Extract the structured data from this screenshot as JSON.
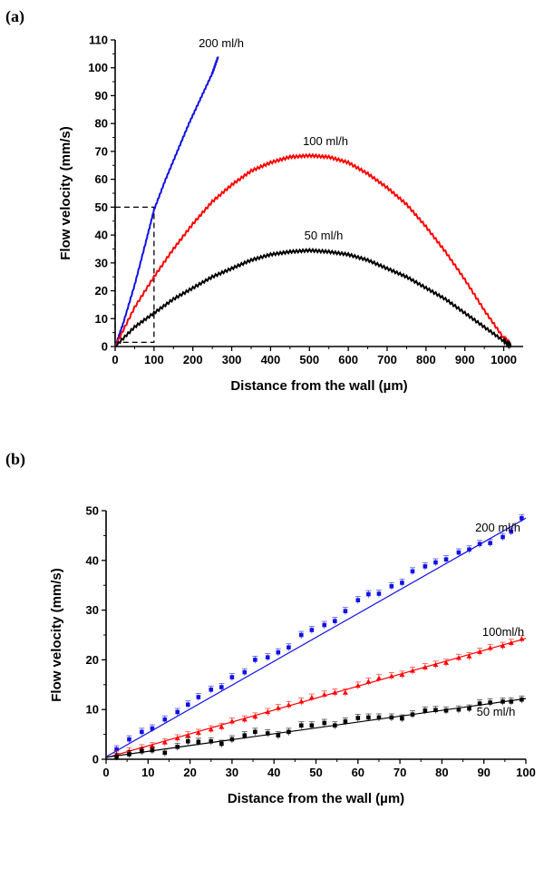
{
  "chart_data": [
    {
      "panel_label": "(a)",
      "type": "line",
      "xlabel": "Distance from the wall (µm)",
      "ylabel": "Flow velocity (mm/s)",
      "xlim": [
        0,
        1050
      ],
      "ylim": [
        0,
        110
      ],
      "xticks": [
        0,
        100,
        200,
        300,
        400,
        500,
        600,
        700,
        800,
        900,
        1000
      ],
      "yticks": [
        0,
        10,
        20,
        30,
        40,
        50,
        60,
        70,
        80,
        90,
        100,
        110
      ],
      "grid": false,
      "legend": "none",
      "series": [
        {
          "name": "200 ml/h",
          "color": "#1010e6",
          "x": [
            0,
            20,
            50,
            80,
            100,
            130,
            160,
            190,
            220,
            250,
            265
          ],
          "y": [
            0,
            8,
            22,
            38,
            49,
            60,
            70,
            80,
            89,
            98,
            104
          ]
        },
        {
          "name": "100 ml/h",
          "color": "#ff0000",
          "x": [
            0,
            50,
            100,
            150,
            200,
            250,
            300,
            350,
            400,
            450,
            500,
            550,
            600,
            650,
            700,
            750,
            800,
            850,
            900,
            950,
            1000,
            1020
          ],
          "y": [
            0,
            14,
            25,
            35,
            44,
            52,
            58,
            63,
            66,
            68,
            68.5,
            68,
            66,
            62,
            57,
            51,
            43,
            34,
            24,
            13,
            3,
            0
          ]
        },
        {
          "name": "50 ml/h",
          "color": "#000000",
          "x": [
            0,
            50,
            100,
            150,
            200,
            250,
            300,
            350,
            400,
            450,
            500,
            550,
            600,
            650,
            700,
            750,
            800,
            850,
            900,
            950,
            1000,
            1020
          ],
          "y": [
            0,
            7,
            12,
            17,
            21,
            25,
            28,
            31,
            33,
            34,
            34.5,
            34,
            33,
            31,
            28,
            25,
            21,
            17,
            12,
            7,
            2,
            0
          ]
        }
      ],
      "annotations": [
        {
          "type": "dashed-box",
          "x": [
            0,
            100
          ],
          "y": [
            1.5,
            50
          ],
          "color": "#000000"
        }
      ]
    },
    {
      "panel_label": "(b)",
      "type": "scatter",
      "xlabel": "Distance from the wall (µm)",
      "ylabel": "Flow velocity (mm/s)",
      "xlim": [
        0,
        100
      ],
      "ylim": [
        0,
        50
      ],
      "xticks": [
        0,
        10,
        20,
        30,
        40,
        50,
        60,
        70,
        80,
        90,
        100
      ],
      "yticks": [
        0,
        10,
        20,
        30,
        40,
        50
      ],
      "grid": false,
      "legend": "none",
      "series": [
        {
          "name": "200 ml/h",
          "color": "#1010e6",
          "marker": "square",
          "fit": [
            0.5,
            48.5
          ],
          "x": [
            2.5,
            5.5,
            8.5,
            11,
            14,
            17,
            19.5,
            22,
            25,
            27.5,
            30,
            33,
            35.5,
            38.5,
            41,
            43.5,
            46.5,
            49,
            52,
            54.5,
            57,
            60,
            62.5,
            65,
            68,
            70.5,
            73,
            76,
            78.5,
            81,
            84,
            86.5,
            89,
            91.5,
            94.5,
            96.5,
            99
          ],
          "y": [
            2,
            4,
            5.5,
            6.2,
            8,
            9.5,
            11,
            12.5,
            14,
            14.5,
            16.5,
            17.5,
            20,
            20.5,
            21.5,
            22.5,
            25,
            26,
            27,
            27.8,
            29.8,
            32,
            33.2,
            33.3,
            34.8,
            35.5,
            37.8,
            38.8,
            39.6,
            40.2,
            41.6,
            42.2,
            43.3,
            43.5,
            44.7,
            45.8,
            48.5
          ]
        },
        {
          "name": "100ml/h",
          "color": "#ff0000",
          "marker": "triangle",
          "fit": [
            0.3,
            24.3
          ],
          "x": [
            2.5,
            5.5,
            8.5,
            11,
            14,
            17,
            19.5,
            22,
            25,
            27.5,
            30,
            33,
            35.5,
            38.5,
            41,
            43.5,
            46.5,
            49,
            52,
            54.5,
            57,
            60,
            62.5,
            65,
            68,
            70.5,
            73,
            76,
            78.5,
            81,
            84,
            86.5,
            89,
            91.5,
            94.5,
            96.5,
            99
          ],
          "y": [
            1,
            1.6,
            2.2,
            2.6,
            3.4,
            4.2,
            4.8,
            5.3,
            6,
            6.5,
            7.6,
            8,
            8.6,
            9.5,
            10.3,
            10.9,
            11.6,
            12.4,
            13,
            13.4,
            13.4,
            14.8,
            15.6,
            16.3,
            16.7,
            17,
            17.8,
            18.5,
            19,
            19.4,
            20.4,
            20.7,
            21.6,
            22.4,
            22.8,
            23.4,
            24.2
          ]
        },
        {
          "name": "50 ml/h",
          "color": "#000000",
          "marker": "square",
          "fit": [
            0.4,
            12.2
          ],
          "x": [
            2.5,
            5.5,
            8.5,
            11,
            14,
            17,
            19.5,
            22,
            25,
            27.5,
            30,
            33,
            35.5,
            38.5,
            41,
            43.5,
            46.5,
            49,
            52,
            54.5,
            57,
            60,
            62.5,
            65,
            68,
            70.5,
            73,
            76,
            78.5,
            81,
            84,
            86.5,
            89,
            91.5,
            94.5,
            96.5,
            99
          ],
          "y": [
            0.5,
            1,
            1.6,
            1.8,
            1.3,
            2.5,
            3.6,
            3.5,
            3.6,
            3.1,
            4,
            4.8,
            5.5,
            5.2,
            4.8,
            5.5,
            6.8,
            6.8,
            7.3,
            6.8,
            7.6,
            8.3,
            8.4,
            8.4,
            8.4,
            8.2,
            9,
            9.8,
            9.9,
            9.8,
            10,
            10.2,
            11.2,
            11.4,
            11.6,
            11.6,
            12
          ]
        }
      ]
    }
  ]
}
